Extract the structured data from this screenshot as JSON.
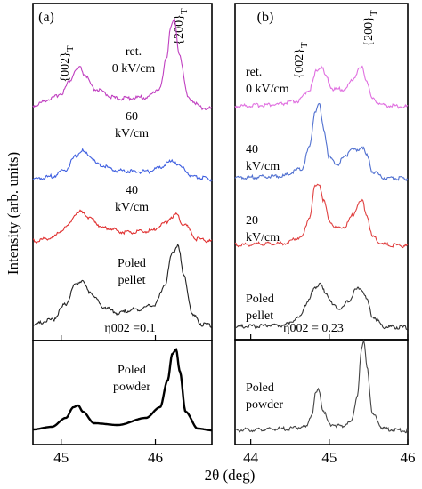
{
  "chart_data": {
    "type": "line",
    "ylabel": "Intensity (arb. units)",
    "xlabel": "2θ (deg)",
    "panels": [
      {
        "id": "a",
        "panel_label": "(a)",
        "xlim": [
          44.7,
          46.6
        ],
        "xticks": [
          "45",
          "46"
        ],
        "xtick_values": [
          45,
          46
        ],
        "peak_labels": [
          "{002}T",
          "{200}T"
        ],
        "eta_label": "η002 =0.1",
        "series": [
          {
            "name": "ret. 0 kV/cm",
            "label_lines": [
              "ret.",
              "0 kV/cm"
            ],
            "color": "#c040c0",
            "x": [
              44.7,
              44.9,
              45.0,
              45.1,
              45.15,
              45.2,
              45.25,
              45.35,
              45.6,
              45.9,
              46.05,
              46.12,
              46.16,
              46.2,
              46.25,
              46.35,
              46.5,
              46.6
            ],
            "y": [
              0.08,
              0.15,
              0.2,
              0.33,
              0.42,
              0.45,
              0.38,
              0.24,
              0.15,
              0.16,
              0.25,
              0.55,
              0.85,
              0.92,
              0.6,
              0.15,
              0.06,
              0.05
            ]
          },
          {
            "name": "60 kV/cm",
            "label_lines": [
              "60",
              "kV/cm"
            ],
            "color": "#4060e0",
            "x": [
              44.7,
              44.9,
              45.05,
              45.15,
              45.22,
              45.28,
              45.4,
              45.6,
              45.9,
              46.05,
              46.15,
              46.2,
              46.28,
              46.4,
              46.6
            ],
            "y": [
              0.05,
              0.1,
              0.22,
              0.45,
              0.55,
              0.48,
              0.3,
              0.2,
              0.18,
              0.25,
              0.35,
              0.36,
              0.25,
              0.1,
              0.05
            ]
          },
          {
            "name": "40 kV/cm",
            "label_lines": [
              "40",
              "kV/cm"
            ],
            "color": "#e03030",
            "x": [
              44.7,
              44.9,
              45.05,
              45.15,
              45.22,
              45.3,
              45.45,
              45.7,
              45.95,
              46.1,
              46.18,
              46.22,
              46.3,
              46.45,
              46.6
            ],
            "y": [
              0.05,
              0.1,
              0.25,
              0.45,
              0.5,
              0.4,
              0.25,
              0.18,
              0.2,
              0.32,
              0.42,
              0.45,
              0.3,
              0.08,
              0.05
            ]
          },
          {
            "name": "Poled pellet",
            "label_lines": [
              "Poled",
              "pellet"
            ],
            "color": "#222222",
            "x": [
              44.7,
              44.9,
              45.05,
              45.15,
              45.22,
              45.3,
              45.45,
              45.6,
              45.8,
              46.0,
              46.1,
              46.18,
              46.24,
              46.3,
              46.4,
              46.5,
              46.6
            ],
            "y": [
              0.05,
              0.1,
              0.28,
              0.5,
              0.55,
              0.42,
              0.25,
              0.18,
              0.22,
              0.28,
              0.5,
              0.85,
              0.95,
              0.6,
              0.15,
              0.05,
              0.04
            ]
          },
          {
            "name": "Poled powder",
            "label_lines": [
              "Poled",
              "powder"
            ],
            "color": "#000000",
            "x": [
              44.7,
              44.9,
              45.05,
              45.13,
              45.18,
              45.23,
              45.35,
              45.6,
              45.9,
              46.05,
              46.13,
              46.18,
              46.22,
              46.26,
              46.32,
              46.45,
              46.6
            ],
            "y": [
              0.05,
              0.08,
              0.18,
              0.3,
              0.32,
              0.25,
              0.12,
              0.1,
              0.18,
              0.3,
              0.6,
              0.9,
              0.95,
              0.7,
              0.25,
              0.06,
              0.04
            ]
          }
        ]
      },
      {
        "id": "b",
        "panel_label": "(b)",
        "xlim": [
          43.8,
          46.0
        ],
        "xticks": [
          "44",
          "45",
          "46"
        ],
        "xtick_values": [
          44,
          45,
          46
        ],
        "peak_labels": [
          "{002}T",
          "{200}T"
        ],
        "eta_label": "η002 = 0.23",
        "series": [
          {
            "name": "ret. 0 kV/cm",
            "label_lines": [
              "ret.",
              "0 kV/cm"
            ],
            "color": "#e070e0",
            "x": [
              43.8,
              44.3,
              44.6,
              44.75,
              44.85,
              44.9,
              44.95,
              45.05,
              45.2,
              45.3,
              45.38,
              45.42,
              45.47,
              45.55,
              45.7,
              46.0
            ],
            "y": [
              0.05,
              0.07,
              0.12,
              0.3,
              0.6,
              0.65,
              0.5,
              0.3,
              0.3,
              0.45,
              0.6,
              0.62,
              0.45,
              0.15,
              0.06,
              0.04
            ]
          },
          {
            "name": "40 kV/cm",
            "label_lines": [
              "40",
              "kV/cm"
            ],
            "color": "#5070d0",
            "x": [
              43.8,
              44.4,
              44.65,
              44.75,
              44.82,
              44.87,
              44.93,
              45.0,
              45.1,
              45.2,
              45.28,
              45.35,
              45.42,
              45.48,
              45.55,
              45.7,
              46.0
            ],
            "y": [
              0.05,
              0.07,
              0.15,
              0.4,
              0.8,
              0.88,
              0.6,
              0.28,
              0.2,
              0.28,
              0.38,
              0.35,
              0.4,
              0.3,
              0.12,
              0.05,
              0.04
            ]
          },
          {
            "name": "20 kV/cm",
            "label_lines": [
              "20",
              "kV/cm"
            ],
            "color": "#e04040",
            "x": [
              43.8,
              44.4,
              44.65,
              44.75,
              44.82,
              44.87,
              44.93,
              45.0,
              45.1,
              45.2,
              45.3,
              45.38,
              45.42,
              45.48,
              45.55,
              45.7,
              46.0
            ],
            "y": [
              0.05,
              0.07,
              0.15,
              0.4,
              0.78,
              0.82,
              0.6,
              0.35,
              0.25,
              0.28,
              0.42,
              0.58,
              0.6,
              0.42,
              0.15,
              0.05,
              0.04
            ]
          },
          {
            "name": "Poled pellet",
            "label_lines": [
              "Poled",
              "pellet"
            ],
            "color": "#333333",
            "x": [
              43.8,
              44.4,
              44.6,
              44.72,
              44.82,
              44.88,
              44.95,
              45.05,
              45.15,
              45.25,
              45.33,
              45.38,
              45.43,
              45.48,
              45.55,
              45.7,
              46.0
            ],
            "y": [
              0.05,
              0.07,
              0.15,
              0.35,
              0.55,
              0.58,
              0.48,
              0.32,
              0.28,
              0.38,
              0.5,
              0.54,
              0.5,
              0.38,
              0.18,
              0.05,
              0.04
            ]
          },
          {
            "name": "Poled powder",
            "label_lines": [
              "Poled",
              "powder"
            ],
            "color": "#444444",
            "x": [
              43.8,
              44.4,
              44.7,
              44.78,
              44.83,
              44.87,
              44.92,
              45.0,
              45.15,
              45.28,
              45.36,
              45.41,
              45.44,
              45.48,
              45.55,
              45.7,
              46.0
            ],
            "y": [
              0.04,
              0.05,
              0.07,
              0.2,
              0.42,
              0.45,
              0.25,
              0.1,
              0.08,
              0.12,
              0.4,
              0.85,
              0.95,
              0.7,
              0.2,
              0.05,
              0.03
            ]
          }
        ]
      }
    ]
  }
}
